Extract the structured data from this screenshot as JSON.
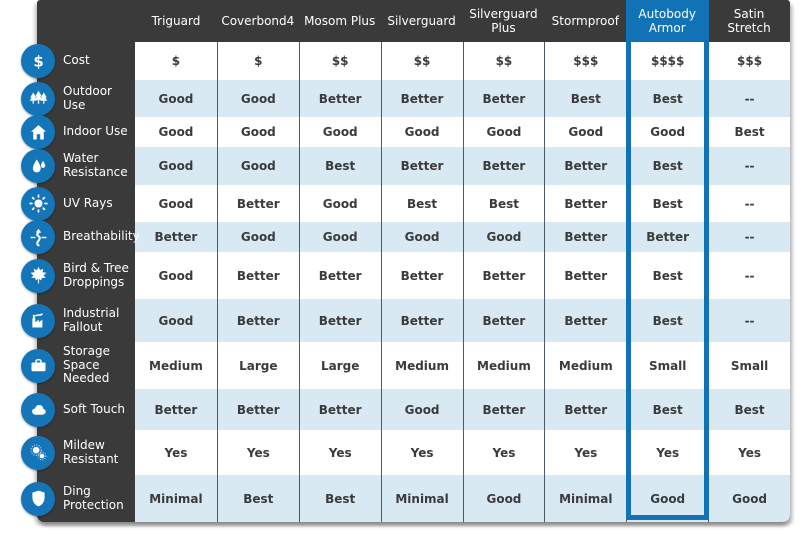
{
  "chart_data": {
    "type": "table",
    "title": "",
    "columns": [
      "Triguard",
      "Coverbond4",
      "Mosom Plus",
      "Silverguard",
      "Silverguard Plus",
      "Stormproof",
      "Autobody Armor",
      "Satin Stretch"
    ],
    "highlighted_column": "Autobody Armor",
    "highlighted_column_index": 6,
    "rows": [
      {
        "label": "Cost",
        "icon": "dollar-icon",
        "values": [
          "$",
          "$",
          "$$",
          "$$",
          "$$",
          "$$$",
          "$$$$",
          "$$$"
        ]
      },
      {
        "label": "Outdoor Use",
        "icon": "trees-icon",
        "values": [
          "Good",
          "Good",
          "Better",
          "Better",
          "Better",
          "Best",
          "Best",
          "--"
        ]
      },
      {
        "label": "Indoor Use",
        "icon": "house-icon",
        "values": [
          "Good",
          "Good",
          "Good",
          "Good",
          "Good",
          "Good",
          "Good",
          "Best"
        ]
      },
      {
        "label": "Water Resistance",
        "icon": "water-drops-icon",
        "values": [
          "Good",
          "Good",
          "Best",
          "Better",
          "Better",
          "Better",
          "Best",
          "--"
        ]
      },
      {
        "label": "UV Rays",
        "icon": "sun-icon",
        "values": [
          "Good",
          "Better",
          "Good",
          "Best",
          "Best",
          "Better",
          "Best",
          "--"
        ]
      },
      {
        "label": "Breathability",
        "icon": "airflow-icon",
        "values": [
          "Better",
          "Good",
          "Good",
          "Good",
          "Good",
          "Better",
          "Better",
          "--"
        ]
      },
      {
        "label": "Bird & Tree Droppings",
        "icon": "maple-leaf-icon",
        "values": [
          "Good",
          "Better",
          "Better",
          "Better",
          "Better",
          "Better",
          "Best",
          "--"
        ]
      },
      {
        "label": "Industrial Fallout",
        "icon": "factory-icon",
        "values": [
          "Good",
          "Better",
          "Better",
          "Better",
          "Better",
          "Better",
          "Best",
          "--"
        ]
      },
      {
        "label": "Storage Space Needed",
        "icon": "briefcase-icon",
        "values": [
          "Medium",
          "Large",
          "Large",
          "Medium",
          "Medium",
          "Medium",
          "Small",
          "Small"
        ]
      },
      {
        "label": "Soft Touch",
        "icon": "cloud-icon",
        "values": [
          "Better",
          "Better",
          "Better",
          "Good",
          "Better",
          "Better",
          "Best",
          "Best"
        ]
      },
      {
        "label": "Mildew Resistant",
        "icon": "mildew-spores-icon",
        "values": [
          "Yes",
          "Yes",
          "Yes",
          "Yes",
          "Yes",
          "Yes",
          "Yes",
          "Yes"
        ]
      },
      {
        "label": "Ding Protection",
        "icon": "shield-icon",
        "values": [
          "Minimal",
          "Best",
          "Best",
          "Minimal",
          "Good",
          "Minimal",
          "Good",
          "Good"
        ]
      }
    ]
  },
  "colors": {
    "accent_blue": "#1173b5",
    "icon_circle_blue": "#1476b9",
    "dark_panel": "#3a3a3a",
    "row_alternate": "#d9e9f4",
    "row_base": "#ffffff",
    "cell_text": "#3b3b3b",
    "column_divider": "#4d5966",
    "header_text": "#ffffff"
  }
}
